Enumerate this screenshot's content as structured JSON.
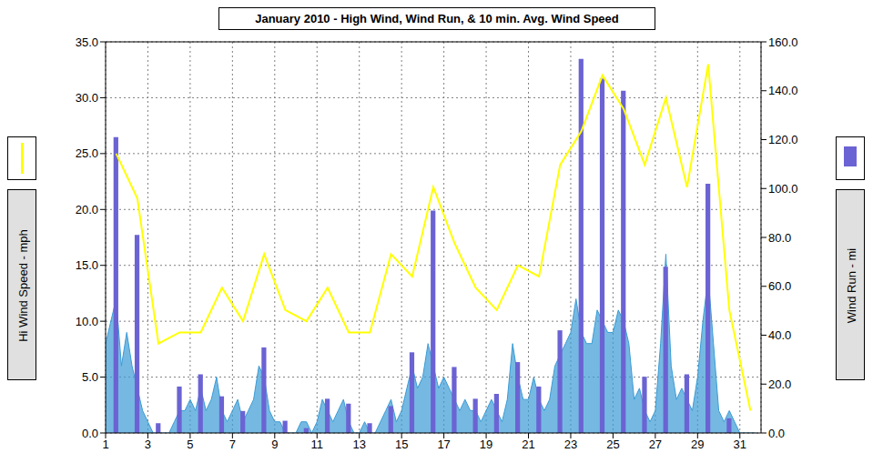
{
  "chart_data": {
    "type": "combo",
    "title": "January 2010 - High Wind, Wind Run, & 10 min. Avg. Wind Speed",
    "ylabel": "Hi Wind Speed - mph",
    "y2label": "Wind Run - mi",
    "grid": true,
    "xlim": [
      1,
      32
    ],
    "xticks": [
      1,
      3,
      5,
      7,
      9,
      11,
      13,
      15,
      17,
      19,
      21,
      23,
      25,
      27,
      29,
      31
    ],
    "ylim": [
      0,
      35
    ],
    "yticks": [
      {
        "value": 0,
        "label": "0.0"
      },
      {
        "value": 5,
        "label": "5.0"
      },
      {
        "value": 10,
        "label": "10.0"
      },
      {
        "value": 15,
        "label": "15.0"
      },
      {
        "value": 20,
        "label": "20.0"
      },
      {
        "value": 25,
        "label": "25.0"
      },
      {
        "value": 30,
        "label": "30.0"
      },
      {
        "value": 35,
        "label": "35.0"
      }
    ],
    "y2lim": [
      0,
      160
    ],
    "y2ticks": [
      {
        "value": 0,
        "label": "0.0"
      },
      {
        "value": 20,
        "label": "20.0"
      },
      {
        "value": 40,
        "label": "40.0"
      },
      {
        "value": 60,
        "label": "60.0"
      },
      {
        "value": 80,
        "label": "80.0"
      },
      {
        "value": 100,
        "label": "100.0"
      },
      {
        "value": 120,
        "label": "120.0"
      },
      {
        "value": 140,
        "label": "140.0"
      },
      {
        "value": 160,
        "label": "160.0"
      }
    ],
    "series": [
      {
        "type": "bar",
        "axis": "y2",
        "color": "#6b63d3",
        "x": [
          1.5,
          2.5,
          3.5,
          4.5,
          5.5,
          6.5,
          7.5,
          8.5,
          9.5,
          10.5,
          11.5,
          12.5,
          13.5,
          14.5,
          15.5,
          16.5,
          17.5,
          18.5,
          19.5,
          20.5,
          21.5,
          22.5,
          23.5,
          24.5,
          25.5,
          26.5,
          27.5,
          28.5,
          29.5,
          30.5,
          31.5
        ],
        "values": [
          121,
          81,
          4,
          19,
          24,
          15,
          9,
          35,
          5,
          2,
          14,
          12,
          4,
          11,
          33,
          91,
          27,
          14,
          16,
          29,
          19,
          42,
          153,
          145,
          140,
          23,
          68,
          24,
          102,
          6,
          0
        ]
      },
      {
        "type": "area",
        "color": "#3a9bd5",
        "x": [
          1,
          1.25,
          1.5,
          1.75,
          2,
          2.25,
          2.5,
          2.75,
          3,
          3.25,
          3.5,
          3.75,
          4,
          4.25,
          4.5,
          4.75,
          5,
          5.25,
          5.5,
          5.75,
          6,
          6.25,
          6.5,
          6.75,
          7,
          7.25,
          7.5,
          7.75,
          8,
          8.25,
          8.5,
          8.75,
          9,
          9.25,
          9.5,
          9.75,
          10,
          10.25,
          10.5,
          10.75,
          11,
          11.25,
          11.5,
          11.75,
          12,
          12.25,
          12.5,
          12.75,
          13,
          13.25,
          13.5,
          13.75,
          14,
          14.25,
          14.5,
          14.75,
          15,
          15.25,
          15.5,
          15.75,
          16,
          16.25,
          16.5,
          16.75,
          17,
          17.25,
          17.5,
          17.75,
          18,
          18.25,
          18.5,
          18.75,
          19,
          19.25,
          19.5,
          19.75,
          20,
          20.25,
          20.5,
          20.75,
          21,
          21.25,
          21.5,
          21.75,
          22,
          22.25,
          22.5,
          22.75,
          23,
          23.25,
          23.5,
          23.75,
          24,
          24.25,
          24.5,
          24.75,
          25,
          25.25,
          25.5,
          25.75,
          26,
          26.25,
          26.5,
          26.75,
          27,
          27.25,
          27.5,
          27.75,
          28,
          28.25,
          28.5,
          28.75,
          29,
          29.25,
          29.5,
          29.75,
          30,
          30.25,
          30.5,
          30.75,
          31,
          31.25,
          31.5,
          31.75
        ],
        "values": [
          8,
          10,
          12,
          6,
          9,
          6,
          4,
          2,
          1,
          0,
          0,
          0,
          0,
          1,
          2,
          2,
          3,
          2,
          4,
          2,
          3,
          5,
          2,
          1,
          2,
          3,
          1,
          2,
          3,
          6,
          5,
          2,
          1,
          1,
          0,
          0,
          0,
          1,
          1,
          0,
          1,
          3,
          2,
          1,
          2,
          3,
          1,
          0,
          0,
          1,
          0,
          0,
          1,
          2,
          3,
          1,
          2,
          4,
          6,
          4,
          5,
          8,
          6,
          4,
          5,
          4,
          3,
          2,
          3,
          2,
          2,
          1,
          2,
          3,
          2,
          1,
          3,
          8,
          5,
          3,
          3,
          5,
          3,
          2,
          3,
          6,
          7,
          8,
          9,
          12,
          9,
          8,
          8,
          11,
          10,
          9,
          9,
          11,
          10,
          8,
          3,
          4,
          2,
          1,
          2,
          8,
          16,
          6,
          3,
          4,
          3,
          2,
          5,
          10,
          14,
          8,
          2,
          1,
          2,
          1,
          0,
          0,
          0,
          0
        ]
      },
      {
        "type": "line",
        "color": "#ffff00",
        "x": [
          1.5,
          2.5,
          3.5,
          4.5,
          5.5,
          6.5,
          7.5,
          8.5,
          9.5,
          10.5,
          11.5,
          12.5,
          13.5,
          14.5,
          15.5,
          16.5,
          17.5,
          18.5,
          19.5,
          20.5,
          21.5,
          22.5,
          23.5,
          24.5,
          25.5,
          26.5,
          27.5,
          28.5,
          29.5,
          30.5,
          31.5
        ],
        "values": [
          25,
          21,
          8,
          9,
          9,
          13,
          10,
          16,
          11,
          10,
          13,
          9,
          9,
          16,
          14,
          22,
          17,
          13,
          11,
          15,
          14,
          24,
          27,
          32,
          29,
          24,
          30,
          22,
          33,
          11,
          2
        ]
      }
    ]
  }
}
